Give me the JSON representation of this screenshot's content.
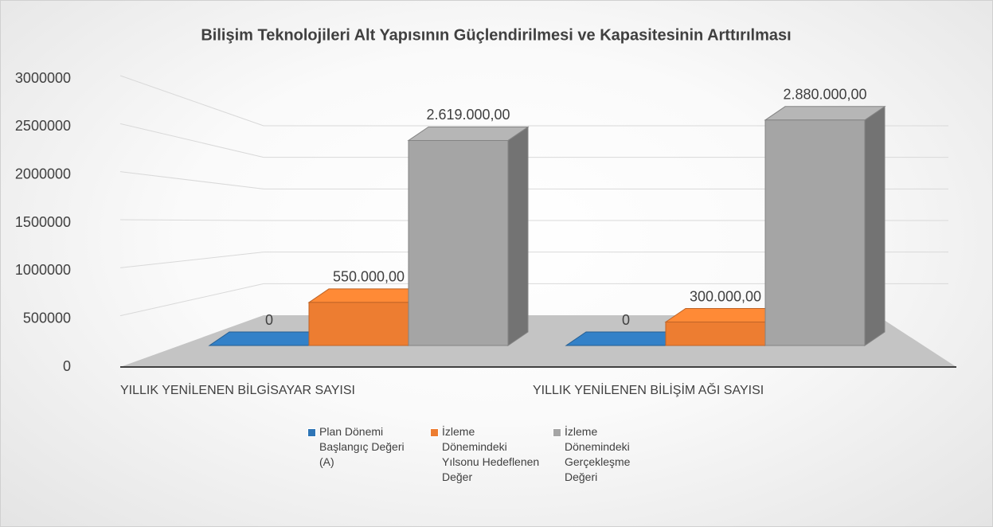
{
  "chart_data": {
    "type": "bar3d",
    "title": "Bilişim Teknolojileri Alt Yapısının Güçlendirilmesi ve Kapasitesinin Arttırılması",
    "categories": [
      "YILLIK YENİLENEN BİLGİSAYAR SAYISI",
      "YILLIK YENİLENEN BİLİŞİM AĞI SAYISI"
    ],
    "series": [
      {
        "name": "Plan Dönemi Başlangıç Değeri (A)",
        "color": "#2e75b6",
        "values": [
          0,
          0
        ],
        "value_labels": [
          "0",
          "0"
        ]
      },
      {
        "name": "İzleme Dönemindeki Yılsonu Hedeflenen Değer",
        "color": "#ed7d31",
        "values": [
          550000,
          300000
        ],
        "value_labels": [
          "550.000,00",
          "300.000,00"
        ]
      },
      {
        "name": "İzleme Dönemindeki Gerçekleşme Değeri",
        "color": "#a5a5a5",
        "values": [
          2619000,
          2880000
        ],
        "value_labels": [
          "2.619.000,00",
          "2.880.000,00"
        ]
      }
    ],
    "ylim": [
      0,
      3000000
    ],
    "yticks": [
      0,
      500000,
      1000000,
      1500000,
      2000000,
      2500000,
      3000000
    ],
    "grid": true,
    "legend": "bottom"
  }
}
